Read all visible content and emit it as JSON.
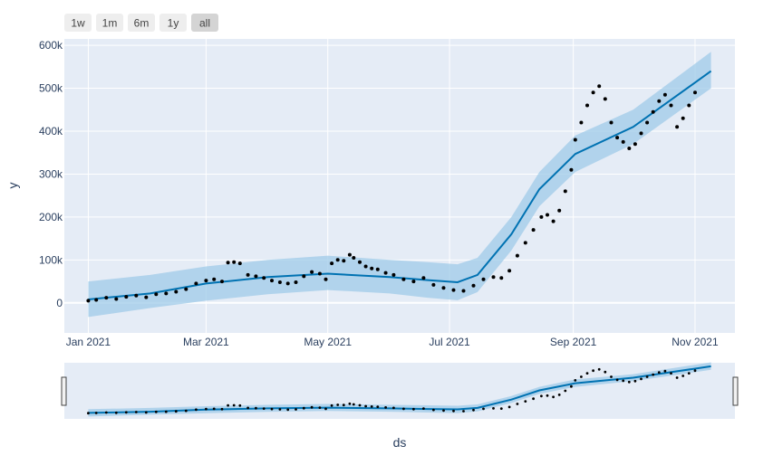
{
  "range_selector": {
    "buttons": [
      {
        "label": "1w"
      },
      {
        "label": "1m"
      },
      {
        "label": "6m"
      },
      {
        "label": "1y"
      },
      {
        "label": "all",
        "active": true
      }
    ]
  },
  "colors": {
    "plot_bg": "#e5ecf6",
    "grid": "#ffffff",
    "trend": "#0072b2",
    "band": "#9fcbe8",
    "points": "#000000",
    "button_bg": "#eeeeee",
    "button_active": "#d4d4d4",
    "text": "#2a3f5f"
  },
  "chart_data": {
    "type": "line",
    "xlabel": "ds",
    "ylabel": "y",
    "x_ticks": [
      "2021-01-01",
      "2021-03-01",
      "2021-05-01",
      "2021-07-01",
      "2021-09-01",
      "2021-11-01"
    ],
    "x_tick_labels": [
      "Jan 2021",
      "Mar 2021",
      "May 2021",
      "Jul 2021",
      "Sep 2021",
      "Nov 2021"
    ],
    "y_ticks": [
      0,
      100000,
      200000,
      300000,
      400000,
      500000,
      600000
    ],
    "y_tick_labels": [
      "0",
      "100k",
      "200k",
      "300k",
      "400k",
      "500k",
      "600k"
    ],
    "xlim": [
      "2020-12-20",
      "2021-11-21"
    ],
    "ylim": [
      -70000,
      615000
    ],
    "grid": true,
    "rangeslider": true,
    "trend": {
      "x": [
        "2021-01-01",
        "2021-02-01",
        "2021-03-01",
        "2021-04-01",
        "2021-05-01",
        "2021-06-01",
        "2021-06-20",
        "2021-07-05",
        "2021-07-15",
        "2021-08-01",
        "2021-08-15",
        "2021-09-02",
        "2021-10-01",
        "2021-11-09"
      ],
      "yhat": [
        8000,
        22000,
        45000,
        60000,
        68000,
        60000,
        53000,
        48000,
        65000,
        160000,
        265000,
        347000,
        410000,
        540000
      ],
      "lower": [
        -33000,
        -12000,
        5000,
        20000,
        30000,
        22000,
        12000,
        6000,
        25000,
        122000,
        225000,
        305000,
        370000,
        500000
      ],
      "upper": [
        50000,
        65000,
        85000,
        100000,
        110000,
        100000,
        95000,
        90000,
        105000,
        200000,
        305000,
        390000,
        450000,
        585000
      ]
    },
    "actual": {
      "x": [
        "2021-01-01",
        "2021-01-05",
        "2021-01-10",
        "2021-01-15",
        "2021-01-20",
        "2021-01-25",
        "2021-01-30",
        "2021-02-04",
        "2021-02-09",
        "2021-02-14",
        "2021-02-19",
        "2021-02-24",
        "2021-03-01",
        "2021-03-05",
        "2021-03-09",
        "2021-03-12",
        "2021-03-15",
        "2021-03-18",
        "2021-03-22",
        "2021-03-26",
        "2021-03-30",
        "2021-04-03",
        "2021-04-07",
        "2021-04-11",
        "2021-04-15",
        "2021-04-19",
        "2021-04-23",
        "2021-04-27",
        "2021-04-30",
        "2021-05-03",
        "2021-05-06",
        "2021-05-09",
        "2021-05-12",
        "2021-05-14",
        "2021-05-17",
        "2021-05-20",
        "2021-05-23",
        "2021-05-26",
        "2021-05-30",
        "2021-06-03",
        "2021-06-08",
        "2021-06-13",
        "2021-06-18",
        "2021-06-23",
        "2021-06-28",
        "2021-07-03",
        "2021-07-08",
        "2021-07-13",
        "2021-07-18",
        "2021-07-23",
        "2021-07-27",
        "2021-07-31",
        "2021-08-04",
        "2021-08-08",
        "2021-08-12",
        "2021-08-16",
        "2021-08-19",
        "2021-08-22",
        "2021-08-25",
        "2021-08-28",
        "2021-08-31",
        "2021-09-02",
        "2021-09-05",
        "2021-09-08",
        "2021-09-11",
        "2021-09-14",
        "2021-09-17",
        "2021-09-20",
        "2021-09-23",
        "2021-09-26",
        "2021-09-29",
        "2021-10-02",
        "2021-10-05",
        "2021-10-08",
        "2021-10-11",
        "2021-10-14",
        "2021-10-17",
        "2021-10-20",
        "2021-10-23",
        "2021-10-26",
        "2021-10-29",
        "2021-11-01"
      ],
      "y": [
        5000,
        7000,
        12000,
        9000,
        14000,
        17000,
        13000,
        20000,
        22000,
        26000,
        32000,
        45000,
        52000,
        55000,
        50000,
        94000,
        95000,
        92000,
        65000,
        62000,
        58000,
        52000,
        48000,
        45000,
        48000,
        62000,
        72000,
        68000,
        55000,
        92000,
        100000,
        98000,
        112000,
        105000,
        95000,
        85000,
        80000,
        78000,
        70000,
        65000,
        55000,
        50000,
        58000,
        42000,
        35000,
        30000,
        28000,
        40000,
        55000,
        60000,
        58000,
        75000,
        110000,
        140000,
        170000,
        200000,
        205000,
        190000,
        215000,
        260000,
        310000,
        380000,
        420000,
        460000,
        490000,
        505000,
        475000,
        420000,
        385000,
        375000,
        360000,
        370000,
        395000,
        420000,
        445000,
        470000,
        485000,
        460000,
        410000,
        430000,
        460000,
        490000
      ]
    }
  }
}
